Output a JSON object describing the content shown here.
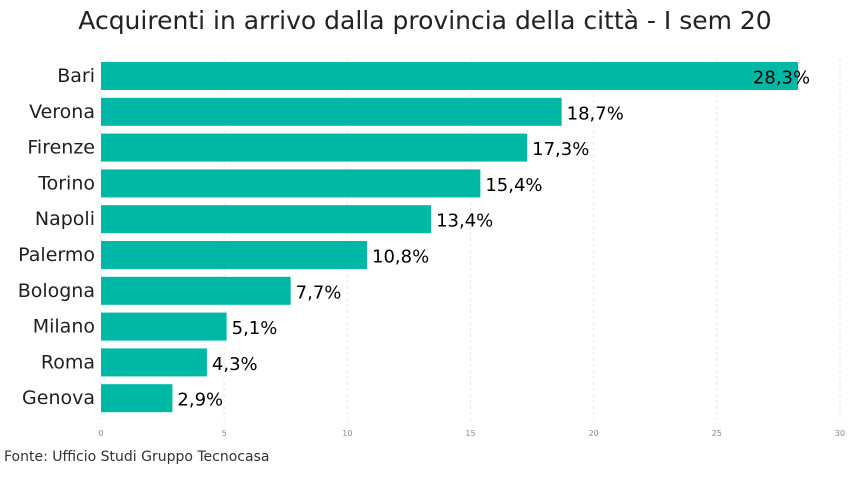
{
  "chart_data": {
    "type": "bar",
    "orientation": "horizontal",
    "title": "Acquirenti in arrivo dalla provincia della città - I sem 20",
    "categories": [
      "Bari",
      "Verona",
      "Firenze",
      "Torino",
      "Napoli",
      "Palermo",
      "Bologna",
      "Milano",
      "Roma",
      "Genova"
    ],
    "values": [
      28.3,
      18.7,
      17.3,
      15.4,
      13.4,
      10.8,
      7.7,
      5.1,
      4.3,
      2.9
    ],
    "value_labels": [
      "28,3%",
      "18,7%",
      "17,3%",
      "15,4%",
      "13,4%",
      "10,8%",
      "7,7%",
      "5,1%",
      "4,3%",
      "2,9%"
    ],
    "x_ticks": [
      "0",
      "5",
      "10",
      "15",
      "20",
      "25",
      "30"
    ],
    "xlim": [
      0,
      30
    ],
    "xlabel": "",
    "ylabel": "",
    "grid": true,
    "bar_color": "#00b8a6",
    "grid_color": "#e6e6e6"
  },
  "source": "Fonte: Ufficio Studi Gruppo Tecnocasa"
}
